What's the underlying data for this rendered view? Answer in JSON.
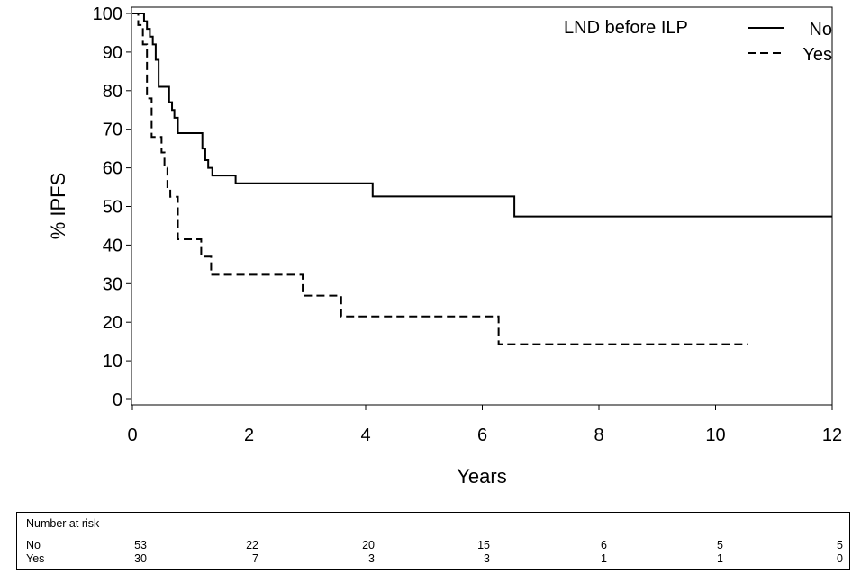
{
  "chart_data": {
    "type": "line",
    "subtype": "kaplan-meier step curve",
    "xlabel": "Years",
    "ylabel": "% IPFS",
    "xlim": [
      0,
      12
    ],
    "ylim": [
      0,
      100
    ],
    "xticks": [
      0,
      2,
      4,
      6,
      8,
      10,
      12
    ],
    "yticks": [
      0,
      10,
      20,
      30,
      40,
      50,
      60,
      70,
      80,
      90,
      100
    ],
    "grid": false,
    "legend": {
      "title": "LND before ILP",
      "position": "top-right"
    },
    "series": [
      {
        "name": "No",
        "line_style": "solid",
        "steps": [
          [
            0,
            100
          ],
          [
            0.2,
            98
          ],
          [
            0.25,
            96
          ],
          [
            0.3,
            94
          ],
          [
            0.35,
            92
          ],
          [
            0.4,
            88
          ],
          [
            0.45,
            81
          ],
          [
            0.63,
            77
          ],
          [
            0.68,
            75
          ],
          [
            0.72,
            73
          ],
          [
            0.78,
            69
          ],
          [
            1.2,
            65
          ],
          [
            1.25,
            62
          ],
          [
            1.3,
            60
          ],
          [
            1.37,
            58
          ],
          [
            1.77,
            56
          ],
          [
            4.12,
            52.6
          ],
          [
            6.55,
            47.4
          ],
          [
            12.0,
            47.4
          ]
        ]
      },
      {
        "name": "Yes",
        "line_style": "dashed",
        "steps": [
          [
            0,
            100
          ],
          [
            0.1,
            97
          ],
          [
            0.18,
            92
          ],
          [
            0.25,
            78
          ],
          [
            0.33,
            68
          ],
          [
            0.5,
            64
          ],
          [
            0.55,
            60
          ],
          [
            0.6,
            55
          ],
          [
            0.65,
            52.5
          ],
          [
            0.78,
            41.5
          ],
          [
            1.18,
            37
          ],
          [
            1.35,
            32.3
          ],
          [
            2.92,
            26.9
          ],
          [
            3.58,
            21.5
          ],
          [
            6.28,
            14.3
          ],
          [
            10.55,
            14.3
          ]
        ]
      }
    ]
  },
  "risk_table": {
    "title": "Number at risk",
    "rows": [
      {
        "label": "No",
        "values": [
          "53",
          "22",
          "20",
          "15",
          "6",
          "5",
          "5"
        ]
      },
      {
        "label": "Yes",
        "values": [
          "30",
          "7",
          "3",
          "3",
          "1",
          "1",
          "0"
        ]
      }
    ]
  }
}
